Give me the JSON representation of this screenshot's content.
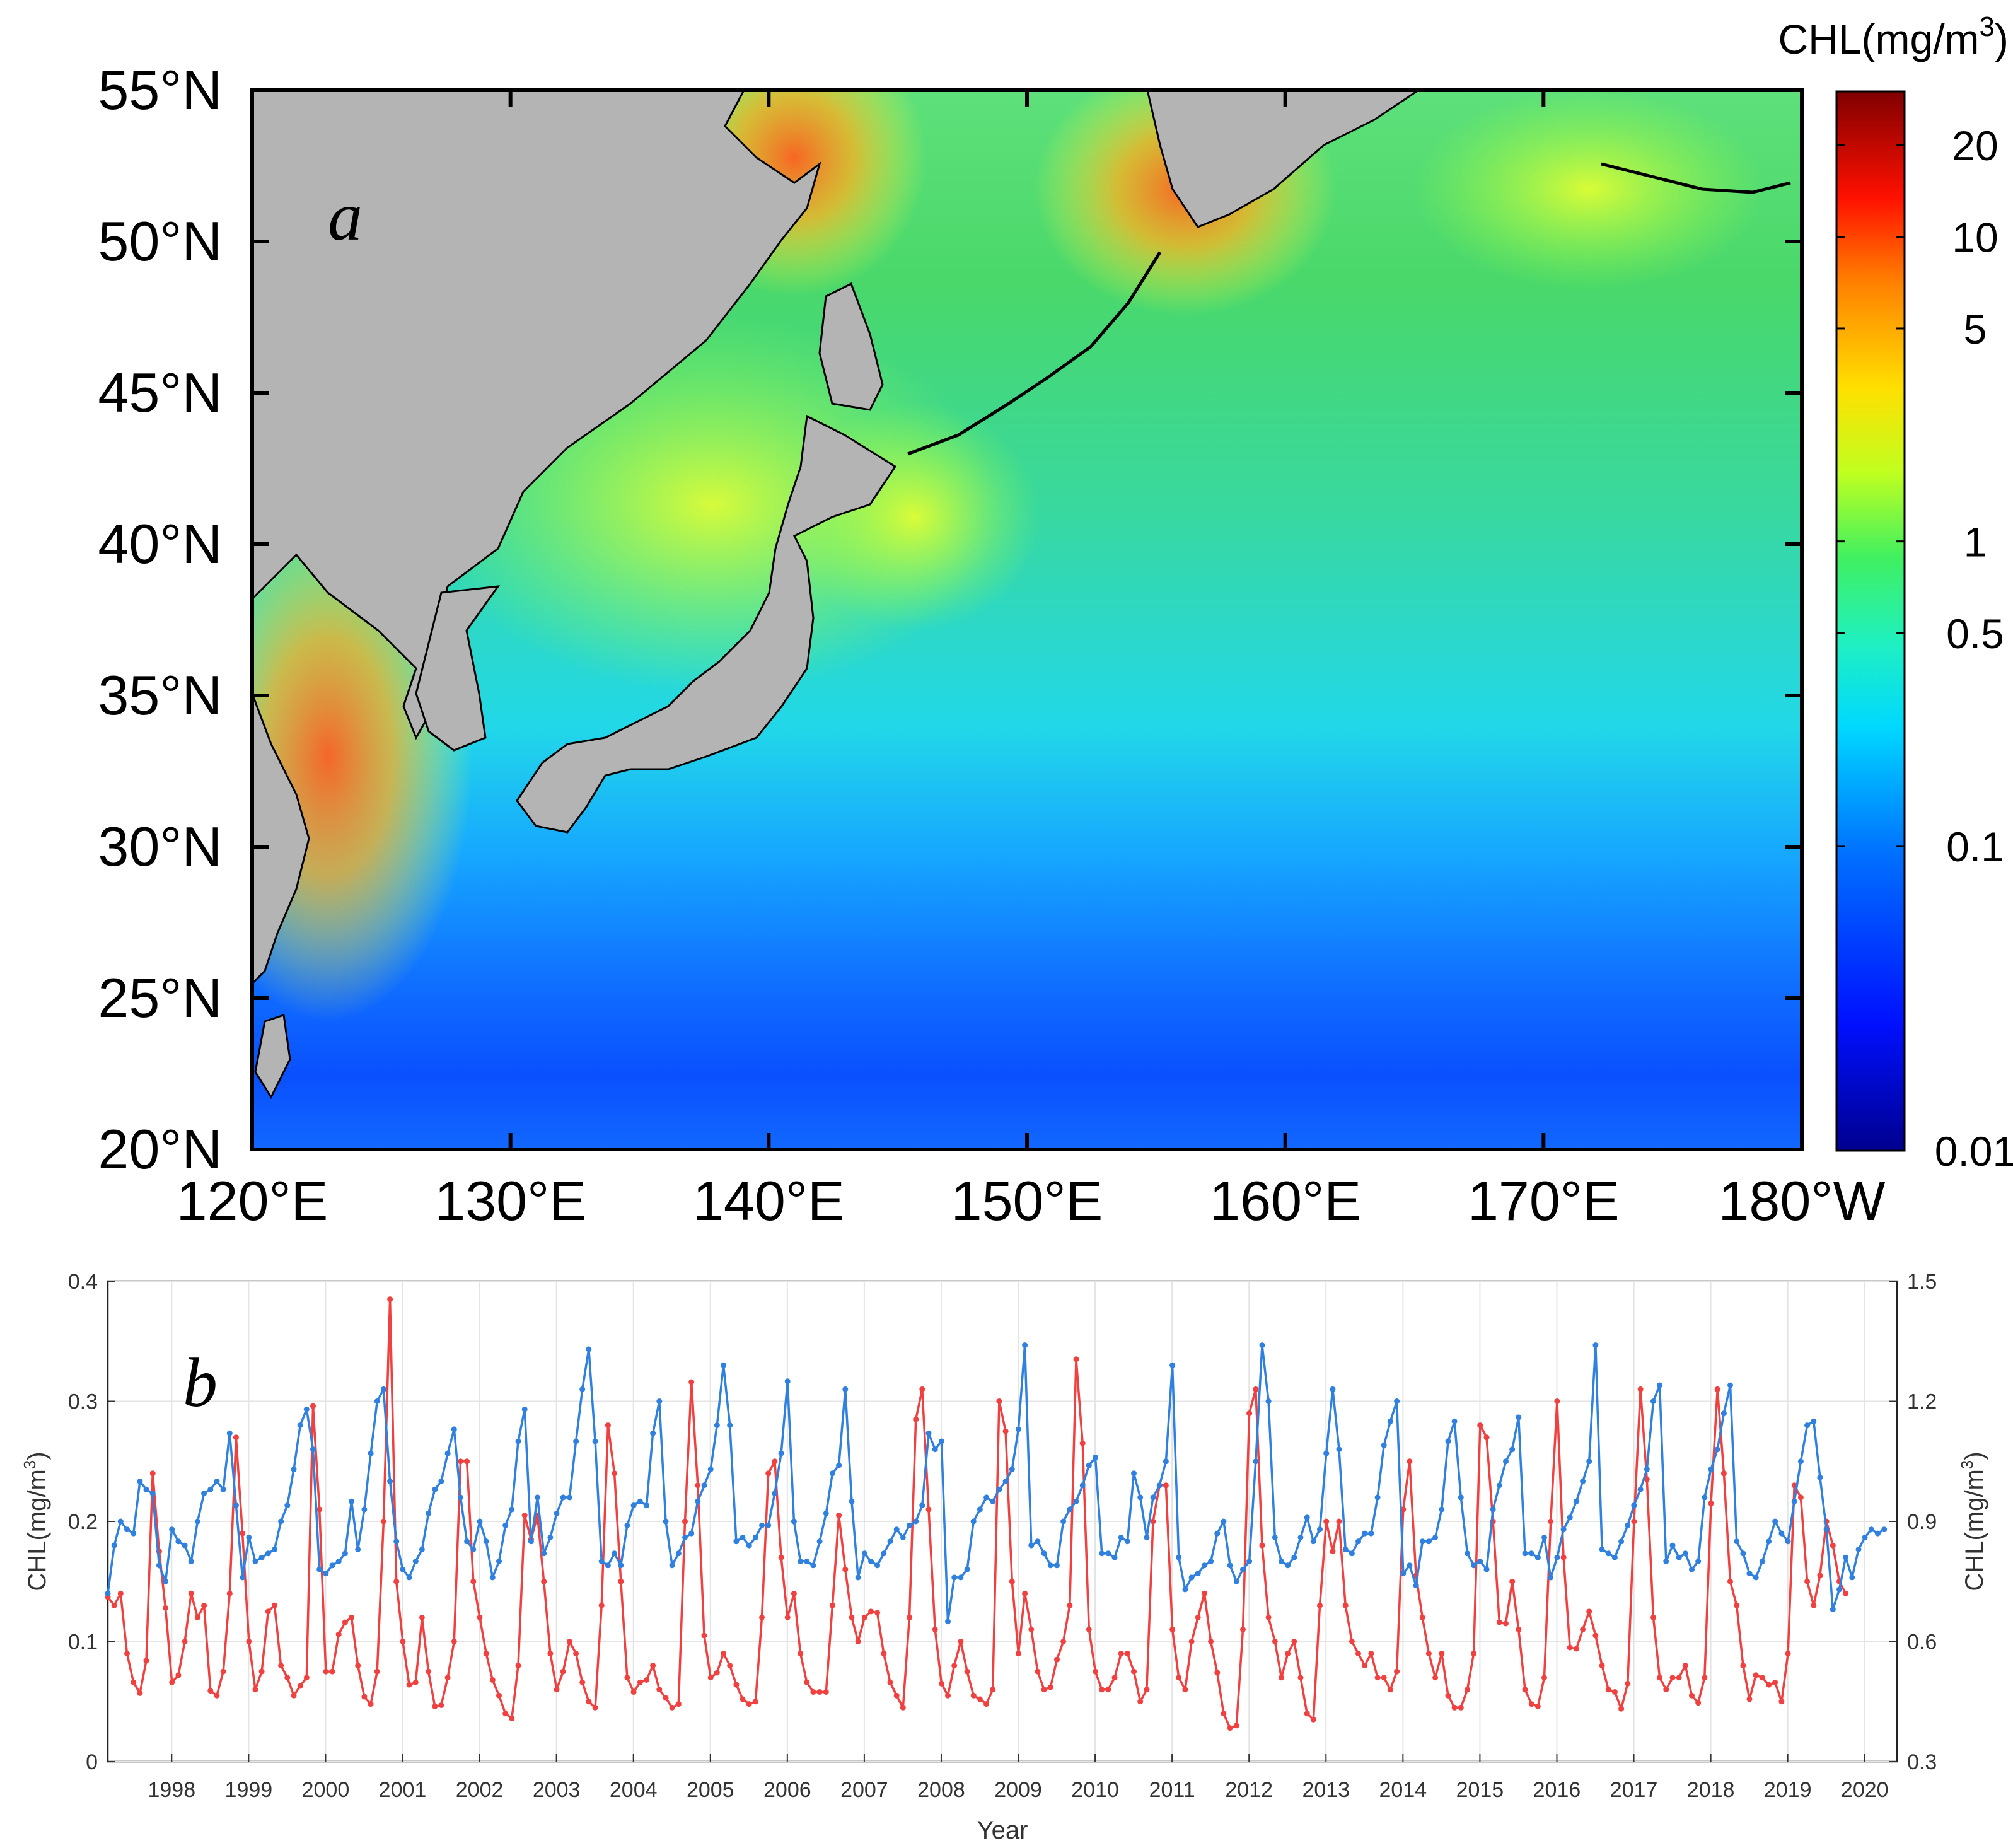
{
  "chart_data": [
    {
      "type": "heatmap",
      "panel_label": "a",
      "description_units": "CHL(mg/m",
      "units_superscript": "3",
      "units_close": ")",
      "x_ticks": [
        "120°E",
        "130°E",
        "140°E",
        "150°E",
        "160°E",
        "170°E",
        "180°W"
      ],
      "x_range_deg": [
        120,
        180
      ],
      "y_ticks": [
        "20°N",
        "25°N",
        "30°N",
        "35°N",
        "40°N",
        "45°N",
        "50°N",
        "55°N"
      ],
      "y_range_deg": [
        20,
        55
      ],
      "colorbar": {
        "scale": "log",
        "range": [
          0.01,
          30
        ],
        "ticks": [
          0.01,
          0.1,
          0.5,
          1,
          5,
          10,
          20
        ],
        "tick_labels": [
          "0.01",
          "0.1",
          "0.5",
          "1",
          "5",
          "10",
          "20"
        ],
        "colors": [
          "#00008f",
          "#0000ff",
          "#0080ff",
          "#00ffff",
          "#40ff80",
          "#c0ff00",
          "#ffff00",
          "#ff8000",
          "#ff0000",
          "#800000"
        ]
      },
      "colors": {
        "land": "#b4b4b4",
        "coast": "#000000"
      }
    },
    {
      "type": "line",
      "panel_label": "b",
      "xlabel": "Year",
      "ylabel_left": "CHL(mg/m",
      "ylabel_right": "CHL(mg/m",
      "units_superscript": "3",
      "units_close": ")",
      "xlim": [
        1997.67,
        2020.92
      ],
      "ylim_left": [
        0,
        0.4
      ],
      "ylim_right": [
        0.3,
        1.5
      ],
      "yticks_left": [
        "0",
        "0.1",
        "0.2",
        "0.3",
        "0.4"
      ],
      "yticks_right": [
        "0.3",
        "0.6",
        "0.9",
        "1.2",
        "1.5"
      ],
      "years": [
        "1998",
        "1999",
        "2000",
        "2001",
        "2002",
        "2003",
        "2004",
        "2005",
        "2006",
        "2007",
        "2008",
        "2009",
        "2010",
        "2011",
        "2012",
        "2013",
        "2014",
        "2015",
        "2016",
        "2017",
        "2018",
        "2019",
        "2020"
      ],
      "series": [
        {
          "name": "red",
          "axis": "left",
          "color": "#f04040",
          "start": 1997.67,
          "values": [
            0.137,
            0.13,
            0.14,
            0.09,
            0.066,
            0.057,
            0.084,
            0.24,
            0.175,
            0.128,
            0.066,
            0.072,
            0.1,
            0.14,
            0.12,
            0.13,
            0.059,
            0.055,
            0.075,
            0.14,
            0.27,
            0.19,
            0.1,
            0.06,
            0.075,
            0.125,
            0.13,
            0.08,
            0.07,
            0.055,
            0.063,
            0.07,
            0.296,
            0.21,
            0.075,
            0.075,
            0.106,
            0.116,
            0.12,
            0.08,
            0.054,
            0.048,
            0.075,
            0.2,
            0.385,
            0.15,
            0.1,
            0.064,
            0.066,
            0.12,
            0.075,
            0.046,
            0.047,
            0.07,
            0.1,
            0.25,
            0.25,
            0.15,
            0.12,
            0.09,
            0.068,
            0.055,
            0.04,
            0.036,
            0.08,
            0.205,
            0.185,
            0.205,
            0.15,
            0.09,
            0.06,
            0.075,
            0.1,
            0.09,
            0.066,
            0.05,
            0.045,
            0.13,
            0.28,
            0.24,
            0.15,
            0.07,
            0.058,
            0.066,
            0.068,
            0.08,
            0.06,
            0.053,
            0.045,
            0.048,
            0.2,
            0.316,
            0.23,
            0.105,
            0.07,
            0.074,
            0.09,
            0.08,
            0.064,
            0.052,
            0.048,
            0.05,
            0.12,
            0.24,
            0.25,
            0.17,
            0.12,
            0.14,
            0.09,
            0.066,
            0.058,
            0.058,
            0.058,
            0.13,
            0.205,
            0.16,
            0.12,
            0.1,
            0.12,
            0.125,
            0.124,
            0.09,
            0.066,
            0.055,
            0.045,
            0.12,
            0.285,
            0.31,
            0.21,
            0.11,
            0.065,
            0.055,
            0.08,
            0.1,
            0.075,
            0.055,
            0.052,
            0.048,
            0.06,
            0.3,
            0.275,
            0.15,
            0.09,
            0.14,
            0.11,
            0.075,
            0.06,
            0.062,
            0.085,
            0.1,
            0.13,
            0.335,
            0.265,
            0.11,
            0.075,
            0.06,
            0.06,
            0.07,
            0.09,
            0.09,
            0.075,
            0.05,
            0.06,
            0.2,
            0.23,
            0.23,
            0.11,
            0.07,
            0.06,
            0.1,
            0.12,
            0.14,
            0.1,
            0.074,
            0.04,
            0.028,
            0.03,
            0.11,
            0.29,
            0.31,
            0.18,
            0.12,
            0.1,
            0.07,
            0.09,
            0.1,
            0.07,
            0.04,
            0.035,
            0.13,
            0.2,
            0.175,
            0.2,
            0.13,
            0.1,
            0.09,
            0.08,
            0.09,
            0.07,
            0.07,
            0.06,
            0.075,
            0.21,
            0.25,
            0.155,
            0.12,
            0.09,
            0.07,
            0.09,
            0.055,
            0.045,
            0.045,
            0.06,
            0.09,
            0.28,
            0.27,
            0.2,
            0.116,
            0.115,
            0.15,
            0.11,
            0.06,
            0.048,
            0.046,
            0.07,
            0.2,
            0.3,
            0.17,
            0.095,
            0.094,
            0.11,
            0.125,
            0.105,
            0.08,
            0.06,
            0.058,
            0.044,
            0.065,
            0.2,
            0.31,
            0.235,
            0.12,
            0.07,
            0.06,
            0.07,
            0.07,
            0.08,
            0.055,
            0.049,
            0.07,
            0.215,
            0.31,
            0.24,
            0.15,
            0.13,
            0.08,
            0.052,
            0.072,
            0.07,
            0.064,
            0.066,
            0.05,
            0.09,
            0.23,
            0.22,
            0.15,
            0.13,
            0.155,
            0.2,
            0.18,
            0.15,
            0.14
          ]
        },
        {
          "name": "blue",
          "axis": "right",
          "color": "#3080e0",
          "start": 1997.67,
          "values": [
            0.72,
            0.84,
            0.9,
            0.88,
            0.87,
            1.0,
            0.98,
            0.97,
            0.79,
            0.75,
            0.88,
            0.85,
            0.84,
            0.8,
            0.9,
            0.97,
            0.98,
            1.0,
            0.98,
            1.12,
            0.94,
            0.76,
            0.86,
            0.8,
            0.81,
            0.82,
            0.83,
            0.9,
            0.94,
            1.03,
            1.14,
            1.18,
            1.08,
            0.78,
            0.77,
            0.79,
            0.8,
            0.82,
            0.95,
            0.83,
            0.93,
            1.07,
            1.2,
            1.23,
            1.0,
            0.85,
            0.78,
            0.76,
            0.8,
            0.83,
            0.92,
            0.98,
            1.0,
            1.07,
            1.13,
            0.96,
            0.85,
            0.83,
            0.9,
            0.85,
            0.76,
            0.8,
            0.89,
            0.93,
            1.1,
            1.18,
            0.85,
            0.96,
            0.82,
            0.86,
            0.92,
            0.96,
            0.96,
            1.1,
            1.23,
            1.33,
            1.1,
            0.8,
            0.79,
            0.82,
            0.79,
            0.89,
            0.94,
            0.95,
            0.94,
            1.12,
            1.2,
            0.9,
            0.79,
            0.82,
            0.86,
            0.87,
            0.95,
            0.99,
            1.03,
            1.14,
            1.29,
            1.14,
            0.85,
            0.86,
            0.84,
            0.86,
            0.89,
            0.89,
            0.97,
            1.07,
            1.25,
            0.9,
            0.8,
            0.8,
            0.79,
            0.85,
            0.92,
            1.02,
            1.04,
            1.23,
            0.95,
            0.76,
            0.82,
            0.8,
            0.79,
            0.82,
            0.85,
            0.88,
            0.86,
            0.89,
            0.9,
            0.94,
            1.12,
            1.08,
            1.1,
            0.65,
            0.76,
            0.76,
            0.78,
            0.9,
            0.93,
            0.96,
            0.95,
            0.98,
            1.0,
            1.03,
            1.13,
            1.34,
            0.84,
            0.85,
            0.82,
            0.79,
            0.79,
            0.9,
            0.93,
            0.95,
            0.99,
            1.04,
            1.06,
            0.82,
            0.82,
            0.81,
            0.86,
            0.85,
            1.02,
            0.96,
            0.86,
            0.96,
            0.99,
            1.05,
            1.29,
            0.81,
            0.73,
            0.76,
            0.77,
            0.79,
            0.8,
            0.87,
            0.9,
            0.79,
            0.75,
            0.78,
            0.8,
            1.05,
            1.34,
            1.2,
            0.86,
            0.8,
            0.79,
            0.81,
            0.86,
            0.91,
            0.85,
            0.88,
            1.07,
            1.23,
            1.08,
            0.83,
            0.82,
            0.85,
            0.87,
            0.87,
            0.96,
            1.09,
            1.15,
            1.2,
            0.77,
            0.79,
            0.74,
            0.85,
            0.85,
            0.86,
            0.93,
            1.1,
            1.15,
            0.96,
            0.82,
            0.79,
            0.8,
            0.78,
            0.93,
            0.99,
            1.05,
            1.08,
            1.16,
            0.82,
            0.82,
            0.81,
            0.86,
            0.76,
            0.81,
            0.88,
            0.91,
            0.95,
            1.0,
            1.05,
            1.34,
            0.83,
            0.82,
            0.81,
            0.85,
            0.89,
            0.94,
            0.98,
            1.03,
            1.2,
            1.24,
            0.8,
            0.84,
            0.81,
            0.82,
            0.78,
            0.8,
            0.96,
            1.03,
            1.08,
            1.17,
            1.24,
            0.85,
            0.82,
            0.77,
            0.76,
            0.8,
            0.85,
            0.9,
            0.87,
            0.85,
            0.95,
            1.05,
            1.14,
            1.15,
            1.01,
            0.88,
            0.68,
            0.73,
            0.81,
            0.76,
            0.83,
            0.86,
            0.88,
            0.87,
            0.88
          ]
        }
      ]
    }
  ]
}
